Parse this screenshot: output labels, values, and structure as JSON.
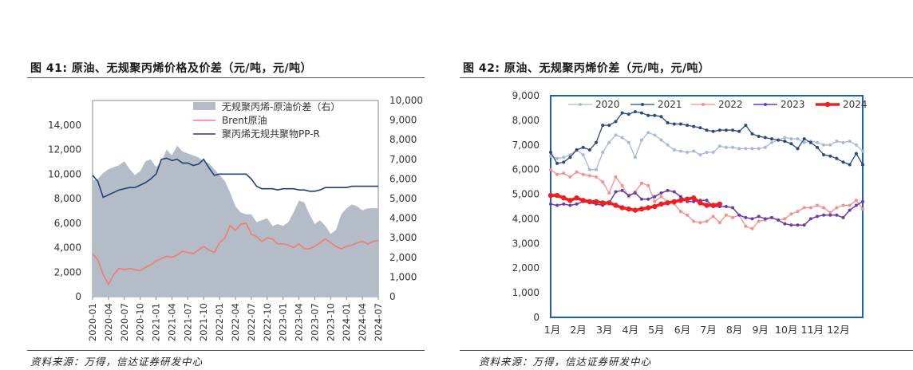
{
  "left_figure": {
    "title": "图 41:  原油、无规聚丙烯价格及价差（元/吨，元/吨）",
    "source": "资料来源：万得，信达证券研发中心"
  },
  "right_figure": {
    "title": "图 42:  原油、无规聚丙烯价差（元/吨，元/吨）",
    "source": "资料来源：万得，信达证券研发中心"
  },
  "colors": {
    "spread_fill": "#b4bcc8",
    "brent": "#f47a72",
    "pp": "#233f7a",
    "y2020": "#a9b9d1",
    "y2021": "#2b4a7c",
    "y2022": "#f48f8b",
    "y2023": "#6a3daa",
    "y2024": "#f01e1e",
    "plot_border": "#1f5fb0"
  },
  "chart_data": [
    {
      "type": "area",
      "title": "",
      "left_axis": {
        "ylim": [
          0,
          16000
        ],
        "ticks": [
          0,
          2000,
          4000,
          6000,
          8000,
          10000,
          12000,
          14000
        ],
        "tick_labels": [
          "0",
          "2,000",
          "4,000",
          "6,000",
          "8,000",
          "10,000",
          "12,000",
          "14,000"
        ]
      },
      "right_axis": {
        "ylim": [
          0,
          10000
        ],
        "ticks": [
          0,
          1000,
          2000,
          3000,
          4000,
          5000,
          6000,
          7000,
          8000,
          9000,
          10000
        ],
        "tick_labels": [
          "0",
          "1,000",
          "2,000",
          "3,000",
          "4,000",
          "5,000",
          "6,000",
          "7,000",
          "8,000",
          "9,000",
          "10,000"
        ]
      },
      "x_tick_labels": [
        "2020-01",
        "2020-04",
        "2020-07",
        "2020-10",
        "2021-01",
        "2021-04",
        "2021-07",
        "2021-10",
        "2022-01",
        "2022-04",
        "2022-07",
        "2022-10",
        "2023-01",
        "2023-04",
        "2023-07",
        "2023-10",
        "2024-01",
        "2024-04",
        "2024-07"
      ],
      "x_months": [
        "2020-01",
        "2020-02",
        "2020-03",
        "2020-04",
        "2020-05",
        "2020-06",
        "2020-07",
        "2020-08",
        "2020-09",
        "2020-10",
        "2020-11",
        "2020-12",
        "2021-01",
        "2021-02",
        "2021-03",
        "2021-04",
        "2021-05",
        "2021-06",
        "2021-07",
        "2021-08",
        "2021-09",
        "2021-10",
        "2021-11",
        "2021-12",
        "2022-01",
        "2022-02",
        "2022-03",
        "2022-04",
        "2022-05",
        "2022-06",
        "2022-07",
        "2022-08",
        "2022-09",
        "2022-10",
        "2022-11",
        "2022-12",
        "2023-01",
        "2023-02",
        "2023-03",
        "2023-04",
        "2023-05",
        "2023-06",
        "2023-07",
        "2023-08",
        "2023-09",
        "2023-10",
        "2023-11",
        "2023-12",
        "2024-01",
        "2024-02",
        "2024-03",
        "2024-04",
        "2024-05",
        "2024-06",
        "2024-07"
      ],
      "legend_position": "top-right",
      "series": [
        {
          "name": "无规聚丙烯-原油价差（右）",
          "kind": "area",
          "axis": "right",
          "values": [
            5900,
            6000,
            6300,
            6500,
            6600,
            6700,
            6900,
            6500,
            6200,
            6400,
            6900,
            7000,
            6600,
            6900,
            7500,
            7200,
            7700,
            7400,
            7300,
            7200,
            7100,
            6900,
            6800,
            6500,
            6200,
            5900,
            5300,
            4600,
            4300,
            4200,
            4200,
            3800,
            3900,
            4000,
            3600,
            3700,
            3600,
            3800,
            4300,
            4900,
            4800,
            4200,
            3700,
            3900,
            3600,
            3200,
            3400,
            4200,
            4500,
            4700,
            4600,
            4400,
            4500,
            4500,
            4500
          ]
        },
        {
          "name": "Brent原油",
          "kind": "line",
          "axis": "left",
          "values": [
            3500,
            3000,
            1800,
            1000,
            1800,
            2300,
            2200,
            2300,
            2200,
            2100,
            2400,
            2600,
            2900,
            3100,
            3300,
            3200,
            3400,
            3700,
            3600,
            3500,
            3800,
            4100,
            3800,
            3600,
            4400,
            4800,
            5800,
            5400,
            5900,
            6000,
            5100,
            4900,
            4500,
            4800,
            4700,
            4300,
            4300,
            4200,
            4000,
            4300,
            3900,
            3900,
            4100,
            4400,
            4700,
            4400,
            4100,
            3900,
            4100,
            4200,
            4400,
            4500,
            4300,
            4500,
            4600
          ]
        },
        {
          "name": "聚丙烯无规共聚物PP-R",
          "kind": "line",
          "axis": "left",
          "values": [
            9900,
            9400,
            8100,
            8300,
            8500,
            8700,
            8800,
            8900,
            8900,
            9100,
            9300,
            9600,
            10000,
            11200,
            11300,
            11100,
            11200,
            10900,
            10900,
            10700,
            10800,
            11200,
            10500,
            9900,
            10000,
            10000,
            10000,
            10000,
            10000,
            10000,
            9600,
            9000,
            8800,
            8800,
            8800,
            8700,
            8800,
            8800,
            8800,
            8700,
            8700,
            8600,
            8600,
            8700,
            8900,
            8900,
            8900,
            8900,
            8900,
            9000,
            9000,
            9000,
            9000,
            9000,
            9000
          ]
        }
      ]
    },
    {
      "type": "line",
      "title": "",
      "ylim": [
        0,
        9000
      ],
      "y_ticks": [
        0,
        1000,
        2000,
        3000,
        4000,
        5000,
        6000,
        7000,
        8000,
        9000
      ],
      "y_tick_labels": [
        "0",
        "1,000",
        "2,000",
        "3,000",
        "4,000",
        "5,000",
        "6,000",
        "7,000",
        "8,000",
        "9,000"
      ],
      "x_range": [
        1,
        13
      ],
      "x_tick_labels": [
        "1月",
        "2月",
        "3月",
        "4月",
        "5月",
        "6月",
        "7月",
        "8月",
        "9月",
        "10月",
        "11月",
        "12月"
      ],
      "legend_position": "top",
      "series": [
        {
          "name": "2020",
          "x": [
            1.0,
            1.25,
            1.5,
            1.75,
            2.0,
            2.25,
            2.5,
            2.75,
            3.0,
            3.25,
            3.5,
            3.75,
            4.0,
            4.25,
            4.5,
            4.75,
            5.0,
            5.25,
            5.5,
            5.75,
            6.0,
            6.25,
            6.5,
            6.75,
            7.0,
            7.25,
            7.5,
            7.75,
            8.0,
            8.25,
            8.5,
            8.75,
            9.0,
            9.25,
            9.5,
            9.75,
            10.0,
            10.25,
            10.5,
            10.75,
            11.0,
            11.25,
            11.5,
            11.75,
            12.0,
            12.25,
            12.5,
            12.75,
            13.0
          ],
          "y": [
            6550,
            6450,
            6500,
            6600,
            6800,
            6600,
            6000,
            6000,
            6700,
            7100,
            7400,
            7300,
            7100,
            6500,
            7200,
            7500,
            7400,
            7200,
            7000,
            6800,
            6750,
            6700,
            6750,
            6600,
            6700,
            6700,
            6950,
            6900,
            6900,
            6850,
            6850,
            6850,
            6850,
            6900,
            7100,
            7200,
            7300,
            7250,
            7250,
            7100,
            7150,
            7100,
            7000,
            7000,
            7150,
            7100,
            7150,
            7000,
            6750
          ]
        },
        {
          "name": "2021",
          "x": [
            1.0,
            1.25,
            1.5,
            1.75,
            2.0,
            2.25,
            2.5,
            2.75,
            3.0,
            3.25,
            3.5,
            3.75,
            4.0,
            4.25,
            4.5,
            4.75,
            5.0,
            5.25,
            5.5,
            5.75,
            6.0,
            6.25,
            6.5,
            6.75,
            7.0,
            7.25,
            7.5,
            7.75,
            8.0,
            8.25,
            8.5,
            8.75,
            9.0,
            9.25,
            9.5,
            9.75,
            10.0,
            10.25,
            10.5,
            10.75,
            11.0,
            11.25,
            11.5,
            11.75,
            12.0,
            12.25,
            12.5,
            12.75,
            13.0
          ],
          "y": [
            6700,
            6250,
            6300,
            6500,
            6800,
            6900,
            6800,
            7100,
            7800,
            7800,
            7950,
            8300,
            8250,
            8350,
            8300,
            8200,
            8200,
            8150,
            7900,
            7850,
            7850,
            7800,
            7750,
            7700,
            7600,
            7550,
            7600,
            7600,
            7600,
            7550,
            7800,
            7450,
            7350,
            7300,
            7250,
            7200,
            7150,
            7050,
            6850,
            7250,
            7100,
            6900,
            6600,
            6550,
            6450,
            6300,
            6200,
            6650,
            6200
          ]
        },
        {
          "name": "2022",
          "x": [
            1.0,
            1.25,
            1.5,
            1.75,
            2.0,
            2.25,
            2.5,
            2.75,
            3.0,
            3.25,
            3.5,
            3.75,
            4.0,
            4.25,
            4.5,
            4.75,
            5.0,
            5.25,
            5.5,
            5.75,
            6.0,
            6.25,
            6.5,
            6.75,
            7.0,
            7.25,
            7.5,
            7.75,
            8.0,
            8.25,
            8.5,
            8.75,
            9.0,
            9.25,
            9.5,
            9.75,
            10.0,
            10.25,
            10.5,
            10.75,
            11.0,
            11.25,
            11.5,
            11.75,
            12.0,
            12.25,
            12.5,
            12.75,
            13.0
          ],
          "y": [
            6000,
            5800,
            5850,
            5700,
            5900,
            5800,
            5750,
            5700,
            5500,
            5050,
            5700,
            5350,
            4900,
            5100,
            5450,
            5350,
            4700,
            4900,
            4700,
            4600,
            4300,
            4150,
            3900,
            3850,
            3900,
            4100,
            3850,
            4150,
            4050,
            4150,
            3700,
            3600,
            3900,
            3950,
            4050,
            3950,
            4000,
            4200,
            4300,
            4450,
            4450,
            4550,
            4450,
            4250,
            4450,
            4550,
            4550,
            4750,
            4400
          ]
        },
        {
          "name": "2023",
          "x": [
            1.0,
            1.25,
            1.5,
            1.75,
            2.0,
            2.25,
            2.5,
            2.75,
            3.0,
            3.25,
            3.5,
            3.75,
            4.0,
            4.25,
            4.5,
            4.75,
            5.0,
            5.25,
            5.5,
            5.75,
            6.0,
            6.25,
            6.5,
            6.75,
            7.0,
            7.25,
            7.5,
            7.75,
            8.0,
            8.25,
            8.5,
            8.75,
            9.0,
            9.25,
            9.5,
            9.75,
            10.0,
            10.25,
            10.5,
            10.75,
            11.0,
            11.25,
            11.5,
            11.75,
            12.0,
            12.25,
            12.5,
            12.75,
            13.0
          ],
          "y": [
            4600,
            4550,
            4600,
            4550,
            4600,
            4700,
            4650,
            4600,
            4550,
            4650,
            5100,
            5150,
            4950,
            5050,
            4800,
            4800,
            4900,
            5050,
            5150,
            5100,
            4900,
            4700,
            4700,
            4750,
            4750,
            4500,
            4500,
            4500,
            4450,
            4150,
            4050,
            4000,
            4100,
            4000,
            4050,
            3950,
            3800,
            3750,
            3750,
            3750,
            4000,
            4100,
            4150,
            4150,
            4150,
            4050,
            4350,
            4550,
            4700
          ]
        },
        {
          "name": "2024",
          "x": [
            1.0,
            1.25,
            1.5,
            1.75,
            2.0,
            2.25,
            2.5,
            2.75,
            3.0,
            3.25,
            3.5,
            3.75,
            4.0,
            4.25,
            4.5,
            4.75,
            5.0,
            5.25,
            5.5,
            5.75,
            6.0,
            6.25,
            6.5,
            6.75,
            7.0,
            7.25,
            7.5
          ],
          "y": [
            4950,
            4950,
            4850,
            4750,
            4850,
            4750,
            4700,
            4700,
            4650,
            4650,
            4550,
            4450,
            4400,
            4350,
            4400,
            4450,
            4500,
            4600,
            4650,
            4700,
            4750,
            4800,
            4850,
            4650,
            4550,
            4550,
            4600
          ]
        }
      ]
    }
  ]
}
